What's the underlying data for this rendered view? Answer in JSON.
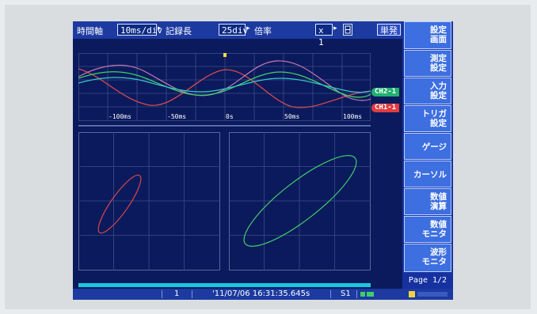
{
  "toolbar": {
    "time_axis_label": "時間軸",
    "time_axis_value": "10ms/div",
    "record_length_label": "記録長",
    "record_length_value": "25div",
    "magnification_label": "倍率",
    "magnification_value": "x 1",
    "single_label": "単発"
  },
  "menu": {
    "items": [
      {
        "label": "設定\n画面"
      },
      {
        "label": "測定\n設定"
      },
      {
        "label": "入力\n設定"
      },
      {
        "label": "トリガ\n設定"
      },
      {
        "label": "ゲージ"
      },
      {
        "label": "カーソル"
      },
      {
        "label": "数値\n演算"
      },
      {
        "label": "数値\nモニタ"
      },
      {
        "label": "波形\nモニタ"
      }
    ],
    "page": "Page 1/2"
  },
  "waveform": {
    "tick_labels": [
      "-100ms",
      "-50ms",
      "0s",
      "50ms",
      "100ms"
    ],
    "channels": [
      {
        "name": "CH2-1",
        "color": "#27c07a"
      },
      {
        "name": "CH1-1",
        "color": "#e8403f"
      }
    ]
  },
  "status": {
    "page_number": "1",
    "timestamp": "'11/07/06  16:31:35.645s",
    "storage": "S1"
  },
  "colors": {
    "screen_bg": "#0b1a5c",
    "grid": "#4a5a90",
    "red_wave": "#d4484c",
    "green_wave": "#3fcf6a",
    "pink_wave": "#c87ab0",
    "cyan_wave": "#37c8c8"
  }
}
